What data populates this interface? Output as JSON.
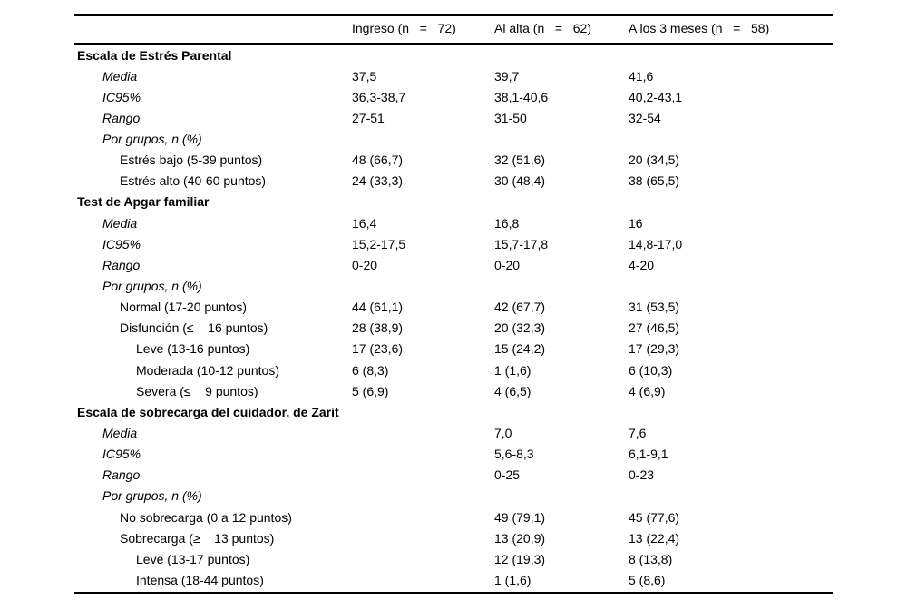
{
  "table": {
    "header": {
      "ingreso": "Ingreso (n   =   72)",
      "al_alta": "Al alta (n   =   62)",
      "tres_meses": "A los 3 meses (n   =   58)"
    },
    "rows": [
      {
        "label": "Escala de Estrés Parental",
        "style": "bold",
        "indent": 0,
        "values": [
          "",
          "",
          ""
        ]
      },
      {
        "label": "Media",
        "style": "italic",
        "indent": 1,
        "values": [
          "37,5",
          "39,7",
          "41,6"
        ]
      },
      {
        "label": "IC95%",
        "style": "italic",
        "indent": 1,
        "values": [
          "36,3-38,7",
          "38,1-40,6",
          "40,2-43,1"
        ]
      },
      {
        "label": "Rango",
        "style": "italic",
        "indent": 1,
        "values": [
          "27-51",
          "31-50",
          "32-54"
        ]
      },
      {
        "label": "Por grupos, n (%)",
        "style": "italic",
        "indent": 1,
        "values": [
          "",
          "",
          ""
        ]
      },
      {
        "label": "Estrés bajo (5-39 puntos)",
        "style": "normal",
        "indent": 2,
        "values": [
          "48 (66,7)",
          "32 (51,6)",
          "20 (34,5)"
        ]
      },
      {
        "label": "Estrés alto (40-60 puntos)",
        "style": "normal",
        "indent": 2,
        "values": [
          "24 (33,3)",
          "30 (48,4)",
          "38 (65,5)"
        ]
      },
      {
        "label": "Test de Apgar familiar",
        "style": "bold",
        "indent": 0,
        "values": [
          "",
          "",
          ""
        ]
      },
      {
        "label": "Media",
        "style": "italic",
        "indent": 1,
        "values": [
          "16,4",
          "16,8",
          "16"
        ]
      },
      {
        "label": "IC95%",
        "style": "italic",
        "indent": 1,
        "values": [
          "15,2-17,5",
          "15,7-17,8",
          "14,8-17,0"
        ]
      },
      {
        "label": "Rango",
        "style": "italic",
        "indent": 1,
        "values": [
          "0-20",
          "0-20",
          "4-20"
        ]
      },
      {
        "label": "Por grupos, n (%)",
        "style": "italic",
        "indent": 1,
        "values": [
          "",
          "",
          ""
        ]
      },
      {
        "label": "Normal (17-20 puntos)",
        "style": "normal",
        "indent": 2,
        "values": [
          "44 (61,1)",
          "42 (67,7)",
          "31 (53,5)"
        ]
      },
      {
        "label": "Disfunción (≤    16 puntos)",
        "style": "normal",
        "indent": 2,
        "values": [
          "28 (38,9)",
          "20 (32,3)",
          "27 (46,5)"
        ]
      },
      {
        "label": "Leve (13-16 puntos)",
        "style": "normal",
        "indent": 3,
        "values": [
          "17 (23,6)",
          "15 (24,2)",
          "17 (29,3)"
        ]
      },
      {
        "label": "Moderada (10-12 puntos)",
        "style": "normal",
        "indent": 3,
        "values": [
          "6 (8,3)",
          "1 (1,6)",
          "6 (10,3)"
        ]
      },
      {
        "label": "Severa (≤    9 puntos)",
        "style": "normal",
        "indent": 3,
        "values": [
          "5 (6,9)",
          "4 (6,5)",
          "4 (6,9)"
        ]
      },
      {
        "label": "Escala de sobrecarga del cuidador, de Zarit",
        "style": "bold",
        "indent": 0,
        "values": [
          "",
          "",
          ""
        ]
      },
      {
        "label": "Media",
        "style": "italic",
        "indent": 1,
        "values": [
          "",
          "7,0",
          "7,6"
        ]
      },
      {
        "label": "IC95%",
        "style": "italic",
        "indent": 1,
        "values": [
          "",
          "5,6-8,3",
          "6,1-9,1"
        ]
      },
      {
        "label": "Rango",
        "style": "italic",
        "indent": 1,
        "values": [
          "",
          "0-25",
          "0-23"
        ]
      },
      {
        "label": "Por grupos, n (%)",
        "style": "italic",
        "indent": 1,
        "values": [
          "",
          "",
          ""
        ]
      },
      {
        "label": "No sobrecarga (0 a 12 puntos)",
        "style": "normal",
        "indent": 2,
        "values": [
          "",
          "49 (79,1)",
          "45 (77,6)"
        ]
      },
      {
        "label": "Sobrecarga (≥    13 puntos)",
        "style": "normal",
        "indent": 2,
        "values": [
          "",
          "13 (20,9)",
          "13 (22,4)"
        ]
      },
      {
        "label": "Leve (13-17 puntos)",
        "style": "normal",
        "indent": 3,
        "values": [
          "",
          "12 (19,3)",
          "8 (13,8)"
        ]
      },
      {
        "label": "Intensa (18-44 puntos)",
        "style": "normal",
        "indent": 3,
        "values": [
          "",
          "1 (1,6)",
          "5 (8,6)"
        ]
      }
    ]
  }
}
